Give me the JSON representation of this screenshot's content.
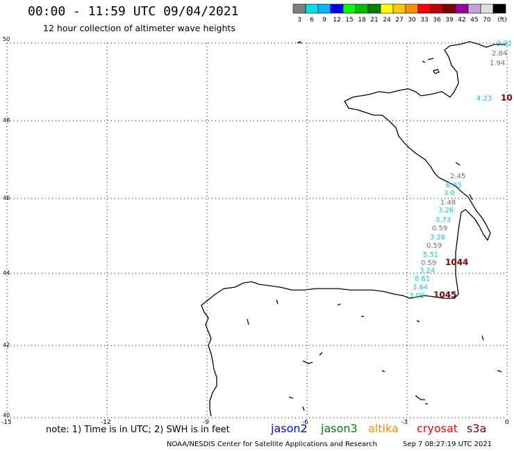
{
  "title": "00:00 - 11:59 UTC 09/04/2021",
  "subtitle": "12 hour collection of altimeter wave heights",
  "legend": {
    "colors": [
      "#808080",
      "#00e0e0",
      "#00b4ff",
      "#0000ff",
      "#00ff00",
      "#00c000",
      "#008000",
      "#ffff00",
      "#ffc800",
      "#ff8c00",
      "#ff0000",
      "#c00000",
      "#800000",
      "#a000a0",
      "#c8a0e0",
      "#e0e0e0",
      "#000000"
    ],
    "labels": [
      "3",
      "6",
      "9",
      "12",
      "15",
      "18",
      "21",
      "24",
      "27",
      "30",
      "33",
      "36",
      "39",
      "42",
      "45",
      "70",
      "(ft)"
    ]
  },
  "axes": {
    "x_ticks": [
      "-15",
      "-12",
      "-9",
      "-6",
      "-3",
      "0"
    ],
    "y_ticks": [
      "50",
      "48",
      "46",
      "44",
      "42",
      "40"
    ]
  },
  "values": [
    {
      "text": "3.32",
      "color": "#00c8d8"
    },
    {
      "text": "2.84",
      "color": "#707070"
    },
    {
      "text": "1.94",
      "color": "#707070"
    },
    {
      "text": "4.23",
      "color": "#00c8d8"
    },
    {
      "text": "10",
      "color": "#800000"
    },
    {
      "text": "2.45",
      "color": "#707070"
    },
    {
      "text": "6.03",
      "color": "#00c8d8"
    },
    {
      "text": "3.0",
      "color": "#00c8d8"
    },
    {
      "text": "1.48",
      "color": "#707070"
    },
    {
      "text": "3.26",
      "color": "#00c8d8"
    },
    {
      "text": "3.73",
      "color": "#00c8d8"
    },
    {
      "text": "0.59",
      "color": "#707070"
    },
    {
      "text": "3.28",
      "color": "#00c8d8"
    },
    {
      "text": "0.59",
      "color": "#707070"
    },
    {
      "text": "5.51",
      "color": "#00c8d8"
    },
    {
      "text": "0.59",
      "color": "#707070"
    },
    {
      "text": "1044",
      "color": "#800000"
    },
    {
      "text": "3.24",
      "color": "#00c8d8"
    },
    {
      "text": "8.61",
      "color": "#00c8d8"
    },
    {
      "text": "3.64",
      "color": "#00c8d8"
    },
    {
      "text": "3.09",
      "color": "#00c8d8"
    },
    {
      "text": "1045",
      "color": "#800000"
    }
  ],
  "footer": {
    "note": "note: 1) Time is in UTC; 2) SWH is in feet",
    "satellites": [
      {
        "name": "jason2",
        "color": "#0000ff"
      },
      {
        "name": "jason3",
        "color": "#008000"
      },
      {
        "name": "altika",
        "color": "#ff8c00"
      },
      {
        "name": "cryosat",
        "color": "#ff0000"
      },
      {
        "name": "s3a",
        "color": "#800000"
      }
    ],
    "credit": "NOAA/NESDIS Center for Satellite Applications and Research",
    "timestamp": "Sep  7 08:27:19 UTC 2021"
  }
}
